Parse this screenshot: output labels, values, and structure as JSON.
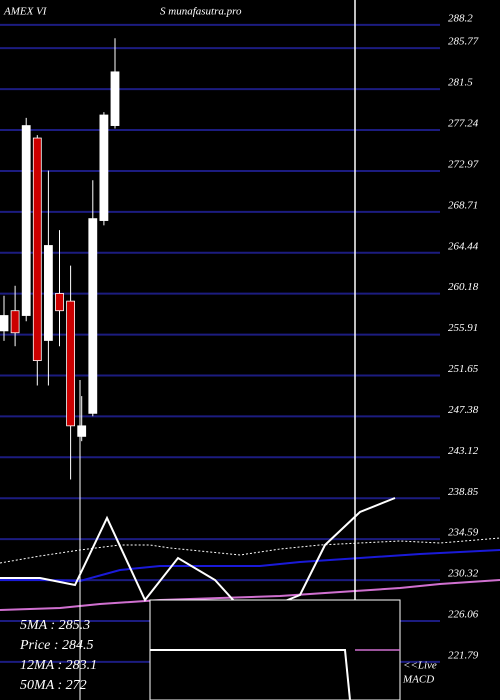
{
  "chart_data": {
    "type": "candlestick",
    "title": "AMEX  VI",
    "subtitle": "S munafasutra.pro",
    "open": [
      256.3,
      258.4,
      257.9,
      276.4,
      255.3,
      260.2,
      259.4,
      245.3,
      247.7,
      267.8,
      277.7
    ],
    "high": [
      259.96,
      261.0,
      278.5,
      276.7,
      273.0,
      266.8,
      263.1,
      249.5,
      272.0,
      279.1,
      286.8
    ],
    "low": [
      255.26,
      254.7,
      257.3,
      250.6,
      250.6,
      254.7,
      240.8,
      244.8,
      247.4,
      267.3,
      277.4
    ],
    "close": [
      257.9,
      256.1,
      277.7,
      253.2,
      265.2,
      258.4,
      246.4,
      246.4,
      268.0,
      278.8,
      283.3
    ],
    "up_color": "#ffffff",
    "down_color": "#cc0000",
    "grid_color": "#1c1c80",
    "ylim": [
      217.82,
      290.79
    ],
    "yticks": [
      288.2,
      285.77,
      281.5,
      277.24,
      272.97,
      268.71,
      264.44,
      260.18,
      255.91,
      251.65,
      247.38,
      243.12,
      238.85,
      234.59,
      230.32,
      226.06,
      221.79
    ],
    "grid": true,
    "info": [
      "5MA : 285.3",
      "Price  : 284.5",
      "12MA : 283.1",
      "50MA : 272"
    ],
    "live_label": "<<Live",
    "indicator_label": "MACD"
  }
}
